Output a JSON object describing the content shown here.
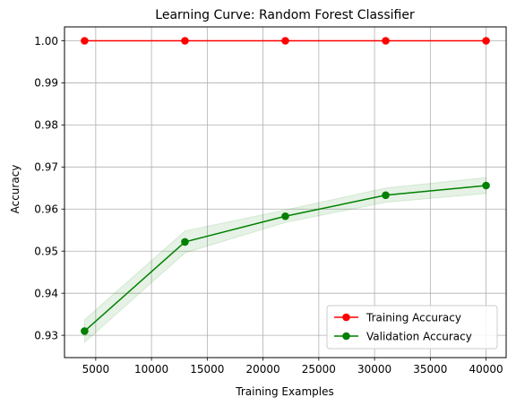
{
  "chart_data": {
    "type": "line",
    "title": "Learning Curve: Random Forest Classifier",
    "xlabel": "Training Examples",
    "ylabel": "Accuracy",
    "x": [
      4000,
      13000,
      22000,
      31000,
      40000
    ],
    "xlim": [
      2200,
      41800
    ],
    "ylim": [
      0.9247,
      1.0033
    ],
    "xticks": [
      5000,
      10000,
      15000,
      20000,
      25000,
      30000,
      35000,
      40000
    ],
    "yticks": [
      0.93,
      0.94,
      0.95,
      0.96,
      0.97,
      0.98,
      0.99,
      1.0
    ],
    "xtick_labels": [
      "5000",
      "10000",
      "15000",
      "20000",
      "25000",
      "30000",
      "35000",
      "40000"
    ],
    "ytick_labels": [
      "0.93",
      "0.94",
      "0.95",
      "0.96",
      "0.97",
      "0.98",
      "0.99",
      "1.00"
    ],
    "grid": true,
    "legend_position": "lower-right",
    "series": [
      {
        "name": "Training Accuracy",
        "color": "#ff0000",
        "marker": "circle",
        "values": [
          1.0,
          1.0,
          1.0,
          1.0,
          1.0
        ],
        "band_upper": [
          1.0,
          1.0,
          1.0,
          1.0,
          1.0
        ],
        "band_lower": [
          1.0,
          1.0,
          1.0,
          1.0,
          1.0
        ]
      },
      {
        "name": "Validation Accuracy",
        "color": "#008000",
        "marker": "circle",
        "values": [
          0.931,
          0.9522,
          0.9583,
          0.9633,
          0.9656
        ],
        "band_upper": [
          0.9337,
          0.9548,
          0.9598,
          0.965,
          0.9675
        ],
        "band_lower": [
          0.9283,
          0.9496,
          0.9568,
          0.9616,
          0.9637
        ]
      }
    ]
  }
}
